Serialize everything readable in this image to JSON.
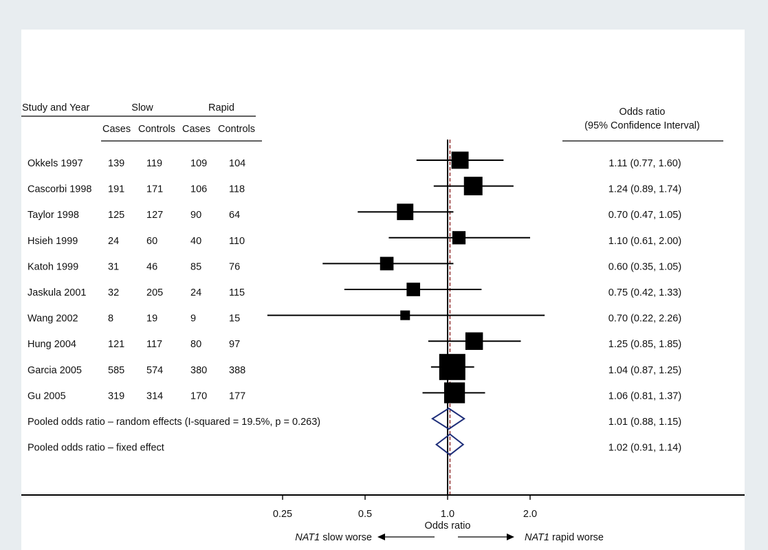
{
  "chart_data": {
    "type": "forest",
    "header": {
      "study_col": "Study and Year",
      "slow_group": "Slow",
      "rapid_group": "Rapid",
      "sub_headers": [
        "Cases",
        "Controls",
        "Cases",
        "Controls"
      ],
      "or_title_line1": "Odds ratio",
      "or_title_line2": "(95% Confidence Interval)"
    },
    "studies": [
      {
        "name": "Okkels 1997",
        "slow_cases": "139",
        "slow_controls": "119",
        "rapid_cases": "109",
        "rapid_controls": "104",
        "or": 1.11,
        "lo": 0.77,
        "hi": 1.6,
        "or_text": "1.11 (0.77, 1.60)",
        "weight": 0.32
      },
      {
        "name": "Cascorbi 1998",
        "slow_cases": "191",
        "slow_controls": "171",
        "rapid_cases": "106",
        "rapid_controls": "118",
        "or": 1.24,
        "lo": 0.89,
        "hi": 1.74,
        "or_text": "1.24 (0.89, 1.74)",
        "weight": 0.4
      },
      {
        "name": "Taylor 1998",
        "slow_cases": "125",
        "slow_controls": "127",
        "rapid_cases": "90",
        "rapid_controls": "64",
        "or": 0.7,
        "lo": 0.47,
        "hi": 1.05,
        "or_text": "0.70 (0.47, 1.05)",
        "weight": 0.28
      },
      {
        "name": "Hsieh 1999",
        "slow_cases": "24",
        "slow_controls": "60",
        "rapid_cases": "40",
        "rapid_controls": "110",
        "or": 1.1,
        "lo": 0.61,
        "hi": 2.0,
        "or_text": "1.10 (0.61, 2.00)",
        "weight": 0.14
      },
      {
        "name": "Katoh 1999",
        "slow_cases": "31",
        "slow_controls": "46",
        "rapid_cases": "85",
        "rapid_controls": "76",
        "or": 0.6,
        "lo": 0.35,
        "hi": 1.05,
        "or_text": "0.60 (0.35, 1.05)",
        "weight": 0.15
      },
      {
        "name": "Jaskula 2001",
        "slow_cases": "32",
        "slow_controls": "205",
        "rapid_cases": "24",
        "rapid_controls": "115",
        "or": 0.75,
        "lo": 0.42,
        "hi": 1.33,
        "or_text": "0.75 (0.42, 1.33)",
        "weight": 0.15
      },
      {
        "name": "Wang 2002",
        "slow_cases": "8",
        "slow_controls": "19",
        "rapid_cases": "9",
        "rapid_controls": "15",
        "or": 0.7,
        "lo": 0.22,
        "hi": 2.26,
        "or_text": "0.70 (0.22, 2.26)",
        "weight": 0.04
      },
      {
        "name": "Hung 2004",
        "slow_cases": "121",
        "slow_controls": "117",
        "rapid_cases": "80",
        "rapid_controls": "97",
        "or": 1.25,
        "lo": 0.85,
        "hi": 1.85,
        "or_text": "1.25 (0.85, 1.85)",
        "weight": 0.34
      },
      {
        "name": "Garcia 2005",
        "slow_cases": "585",
        "slow_controls": "574",
        "rapid_cases": "380",
        "rapid_controls": "388",
        "or": 1.04,
        "lo": 0.87,
        "hi": 1.25,
        "or_text": "1.04 (0.87, 1.25)",
        "weight": 1.0
      },
      {
        "name": "Gu 2005",
        "slow_cases": "319",
        "slow_controls": "314",
        "rapid_cases": "170",
        "rapid_controls": "177",
        "or": 1.06,
        "lo": 0.81,
        "hi": 1.37,
        "or_text": "1.06 (0.81, 1.37)",
        "weight": 0.55
      }
    ],
    "pooled": [
      {
        "label": "Pooled odds ratio – random effects (I-squared = 19.5%, p = 0.263)",
        "or": 1.01,
        "lo": 0.88,
        "hi": 1.15,
        "or_text": "1.01 (0.88, 1.15)"
      },
      {
        "label": "Pooled odds ratio – fixed effect",
        "or": 1.02,
        "lo": 0.91,
        "hi": 1.14,
        "or_text": "1.02 (0.91, 1.14)"
      }
    ],
    "x_scale": "log",
    "x_ticks": [
      {
        "value": 0.25,
        "label": "0.25"
      },
      {
        "value": 0.5,
        "label": "0.5"
      },
      {
        "value": 1.0,
        "label": "1.0"
      },
      {
        "value": 2.0,
        "label": "2.0"
      }
    ],
    "xlabel": "Odds ratio",
    "direction_left_gene": "NAT1",
    "direction_left_text": " slow worse",
    "direction_right_gene": "NAT1",
    "direction_right_text": " rapid worse",
    "colors": {
      "background": "#e8edf0",
      "panel": "#ffffff",
      "marker": "#000000",
      "diamond": "#1f2f7a",
      "pooled_line": "#8b1a1a"
    }
  }
}
